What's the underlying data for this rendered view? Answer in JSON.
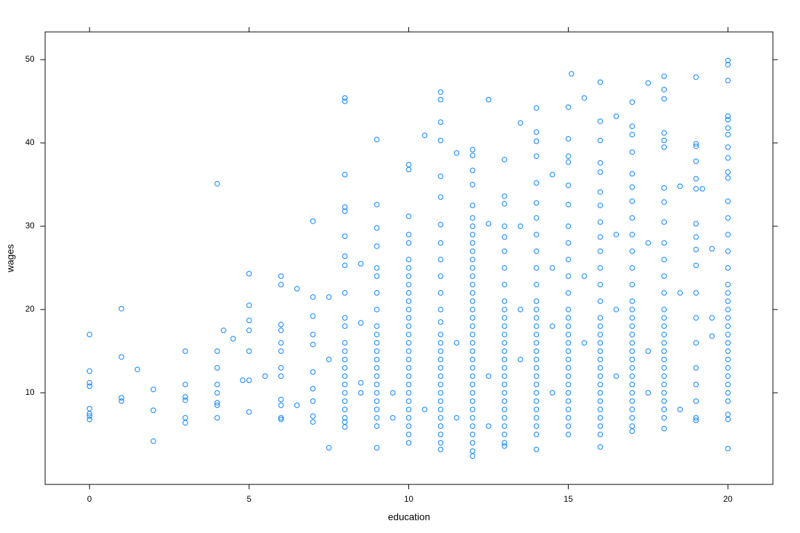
{
  "chart_data": {
    "type": "scatter",
    "xlabel": "education",
    "ylabel": "wages",
    "color": "#0080ff",
    "xlim": [
      -1.39,
      21.41
    ],
    "ylim": [
      -1,
      53.33
    ],
    "xticks": [
      0,
      5,
      10,
      15,
      20
    ],
    "yticks": [
      10,
      20,
      30,
      40,
      50
    ],
    "x": [
      0,
      0,
      0,
      0,
      0,
      0,
      0,
      0,
      1,
      1,
      1,
      1,
      1.5,
      2,
      2,
      2,
      3,
      3,
      3,
      3,
      3,
      3,
      4,
      4,
      4,
      4,
      4,
      4,
      4,
      4,
      4.2,
      4.5,
      4.8,
      5,
      5,
      5,
      5,
      5,
      5,
      5,
      5.5,
      6,
      6,
      6,
      6,
      6,
      6,
      6,
      6,
      6,
      6,
      6,
      6,
      6.5,
      6.5,
      7,
      7,
      7,
      7,
      7,
      7,
      7,
      7,
      7,
      7,
      7.5,
      7.5,
      7.5,
      8,
      8,
      8,
      8,
      8,
      8,
      8,
      8,
      8,
      8,
      8,
      8,
      8,
      8,
      8,
      8,
      8,
      8,
      8,
      8,
      8,
      8,
      8,
      8.5,
      8.5,
      8.5,
      8.5,
      9,
      9,
      9,
      9,
      9,
      9,
      9,
      9,
      9,
      9,
      9,
      9,
      9,
      9,
      9,
      9,
      9,
      9,
      9,
      9,
      9,
      9,
      10,
      10,
      10,
      10,
      10,
      10,
      10,
      10,
      10,
      10,
      10,
      10,
      10,
      10,
      10,
      10,
      10,
      10,
      10,
      10,
      10,
      10,
      10,
      10,
      10,
      10,
      10,
      10,
      11,
      11,
      11,
      11,
      11,
      11,
      11,
      11,
      11,
      11,
      11,
      11,
      11,
      11,
      11,
      11,
      11,
      11,
      11,
      11,
      11,
      11,
      11,
      11,
      11,
      11,
      11,
      11,
      12,
      12,
      12,
      12,
      12,
      12,
      12,
      12,
      12,
      12,
      12,
      12,
      12,
      12,
      12,
      12,
      12,
      12,
      12,
      12,
      12,
      12,
      12,
      12,
      12,
      12,
      12,
      12,
      12,
      12,
      12,
      12,
      12,
      12,
      12,
      13,
      13,
      13,
      13,
      13,
      13,
      13,
      13,
      13,
      13,
      13,
      13,
      13,
      13,
      13,
      13,
      13,
      13,
      13,
      13,
      13,
      13,
      13,
      13,
      13,
      13,
      13,
      14,
      14,
      14,
      14,
      14,
      14,
      14,
      14,
      14,
      14,
      14,
      14,
      14,
      14,
      14,
      14,
      14,
      14,
      14,
      14,
      14,
      14,
      14,
      14,
      14,
      14,
      14,
      14,
      14,
      15,
      15,
      15,
      15,
      15,
      15,
      15,
      15,
      15,
      15,
      15,
      15,
      15,
      15,
      15,
      15,
      15,
      15,
      15,
      15,
      15,
      15,
      15,
      15,
      15,
      15,
      15,
      16,
      16,
      16,
      16,
      16,
      16,
      16,
      16,
      16,
      16,
      16,
      16,
      16,
      16,
      16,
      16,
      16,
      16,
      16,
      16,
      16,
      16,
      16,
      16,
      16,
      16,
      16,
      16,
      16,
      17,
      17,
      17,
      17,
      17,
      17,
      17,
      17,
      17,
      17,
      17,
      17,
      17,
      17,
      17,
      17,
      17,
      17,
      17,
      17,
      17,
      17,
      17,
      17,
      17,
      17,
      17,
      17,
      17,
      18,
      18,
      18,
      18,
      18,
      18,
      18,
      18,
      18,
      18,
      18,
      18,
      18,
      18,
      18,
      18,
      18,
      18,
      18,
      18,
      18,
      18,
      18,
      18,
      18,
      18,
      18,
      18,
      19,
      19,
      19,
      19,
      19,
      19,
      19,
      19,
      19,
      19,
      19,
      19,
      19,
      19,
      19,
      19,
      19,
      19,
      20,
      20,
      20,
      20,
      20,
      20,
      20,
      20,
      20,
      20,
      20,
      20,
      20,
      20,
      20,
      20,
      20,
      20,
      20,
      20,
      20,
      20,
      20,
      20,
      20,
      20,
      20,
      20,
      20,
      20,
      20,
      20,
      20,
      20,
      12.5,
      13.5,
      14.5,
      15.5,
      16.5,
      17.5,
      15.1,
      11.5,
      10.5,
      12.5,
      13.5,
      14.5,
      16.5,
      17.5,
      18.5,
      19.5,
      19.2,
      11.5,
      12.5,
      13.5,
      14.5,
      15.5,
      16.5,
      17.5,
      18.5,
      19.5,
      10.5,
      11.5,
      12.5,
      13.5,
      14.5,
      15.5,
      16.5,
      17.5,
      18.5,
      19.5,
      9.5,
      9.5
    ],
    "values": [
      17,
      12.6,
      11.2,
      10.8,
      8.1,
      7.5,
      7.2,
      6.8,
      20.1,
      14.3,
      9.4,
      9.0,
      12.8,
      10.4,
      7.9,
      4.2,
      15,
      11,
      9.5,
      9.1,
      7,
      6.4,
      35.1,
      15,
      13,
      11,
      10,
      8.8,
      8.5,
      7,
      17.5,
      16.5,
      11.5,
      24.3,
      20.5,
      18.7,
      17.5,
      15,
      11.5,
      7.7,
      12,
      24,
      23,
      18.2,
      17.5,
      16,
      15,
      13,
      12,
      9.2,
      8.5,
      7,
      6.8,
      22.5,
      8.5,
      30.6,
      21.5,
      19.2,
      17,
      15.8,
      12.5,
      10.5,
      9,
      7.2,
      6.5,
      21.5,
      14,
      3.4,
      45.4,
      45,
      36.2,
      32.3,
      31.8,
      28.8,
      26.4,
      25.3,
      22,
      19,
      18,
      16,
      15,
      14,
      13,
      12,
      11,
      10,
      9,
      8,
      7,
      6.5,
      5.9,
      25.5,
      18.4,
      11.2,
      10,
      40.4,
      32.6,
      29.8,
      27.6,
      25,
      24,
      22,
      20,
      18,
      17,
      16,
      15,
      14,
      13,
      12,
      11,
      10,
      9,
      8,
      7,
      6,
      3.4,
      37.4,
      36.8,
      31.2,
      29,
      28,
      26,
      25,
      24,
      23,
      22,
      21,
      20,
      19,
      18,
      17,
      16,
      15,
      14,
      13,
      12,
      11,
      10,
      9,
      8,
      7,
      6,
      5,
      4,
      46.1,
      45.2,
      42.5,
      40.3,
      36,
      33.5,
      30.2,
      28,
      26,
      24,
      22,
      20,
      18.5,
      17,
      16,
      15,
      14,
      13,
      12,
      11,
      10,
      9,
      8,
      7,
      6,
      5,
      4,
      3.2,
      39.2,
      38.5,
      36.7,
      35,
      32.5,
      31,
      30,
      29,
      28,
      27,
      26,
      25,
      24,
      23,
      22,
      21,
      20,
      19,
      18,
      17,
      16,
      15,
      14,
      13,
      12,
      11,
      10,
      9,
      8,
      7,
      6,
      5,
      4,
      3,
      2.4,
      38,
      33.6,
      32.7,
      30,
      28.7,
      27,
      25,
      23,
      21,
      20,
      19,
      18,
      17,
      16,
      15,
      14,
      13,
      12,
      11,
      10,
      9,
      8,
      7,
      6,
      5,
      4,
      3.6,
      44.2,
      41.3,
      40.2,
      38.4,
      35.2,
      32.8,
      31,
      29,
      27,
      25,
      23,
      21,
      20,
      19,
      18,
      17,
      16,
      15,
      14,
      13,
      12,
      11,
      10,
      9,
      8,
      7,
      6,
      5,
      3.2,
      44.3,
      40.5,
      38.4,
      37.7,
      34.9,
      32.6,
      30,
      28,
      26,
      24,
      22,
      20,
      19,
      18,
      17,
      16,
      15,
      14,
      13,
      12,
      11,
      10,
      9,
      8,
      7,
      6,
      5,
      47.3,
      42.6,
      40.3,
      37.6,
      36.5,
      34.1,
      32.5,
      30.5,
      28.7,
      27,
      25,
      23,
      21,
      19,
      18,
      17,
      16,
      15,
      14,
      13,
      12,
      11,
      10,
      9,
      8,
      7,
      6,
      5,
      3.5,
      44.9,
      42,
      41,
      38.9,
      36.3,
      34.7,
      33,
      31,
      29,
      27,
      25,
      23,
      21,
      20,
      19,
      18,
      17,
      16,
      15,
      14,
      13,
      12,
      11,
      10,
      9,
      8,
      7,
      6,
      5.4,
      48,
      46.4,
      45.3,
      41.2,
      40.3,
      39.5,
      34.6,
      32.9,
      30.5,
      28,
      26,
      24,
      22,
      20,
      19,
      18,
      17,
      16,
      15,
      14,
      13,
      12,
      11,
      10,
      9,
      8,
      7,
      5.7,
      47.9,
      39.9,
      39.6,
      37.8,
      35.7,
      34.5,
      30.3,
      28.7,
      27.2,
      25.3,
      22,
      19,
      16,
      13,
      11,
      9,
      7,
      6.7,
      49.9,
      49.4,
      47.5,
      43.2,
      42.8,
      41.8,
      41,
      39.5,
      38.2,
      36.5,
      35.8,
      33,
      31,
      29,
      27,
      25,
      23,
      22,
      21,
      20,
      19,
      18,
      17,
      16,
      15,
      14,
      13,
      12,
      11,
      10,
      9,
      7.4,
      6.8,
      3.3,
      45.2,
      42.4,
      36.2,
      45.4,
      43.2,
      47.2,
      48.3,
      38.8,
      40.9,
      30.3,
      30,
      25,
      29,
      28,
      34.8,
      27.3,
      34.5,
      16,
      12,
      14,
      10,
      16,
      12,
      10,
      8,
      19,
      8,
      7,
      6,
      20,
      18,
      24,
      20,
      15,
      22,
      16.8,
      10,
      7
    ]
  }
}
